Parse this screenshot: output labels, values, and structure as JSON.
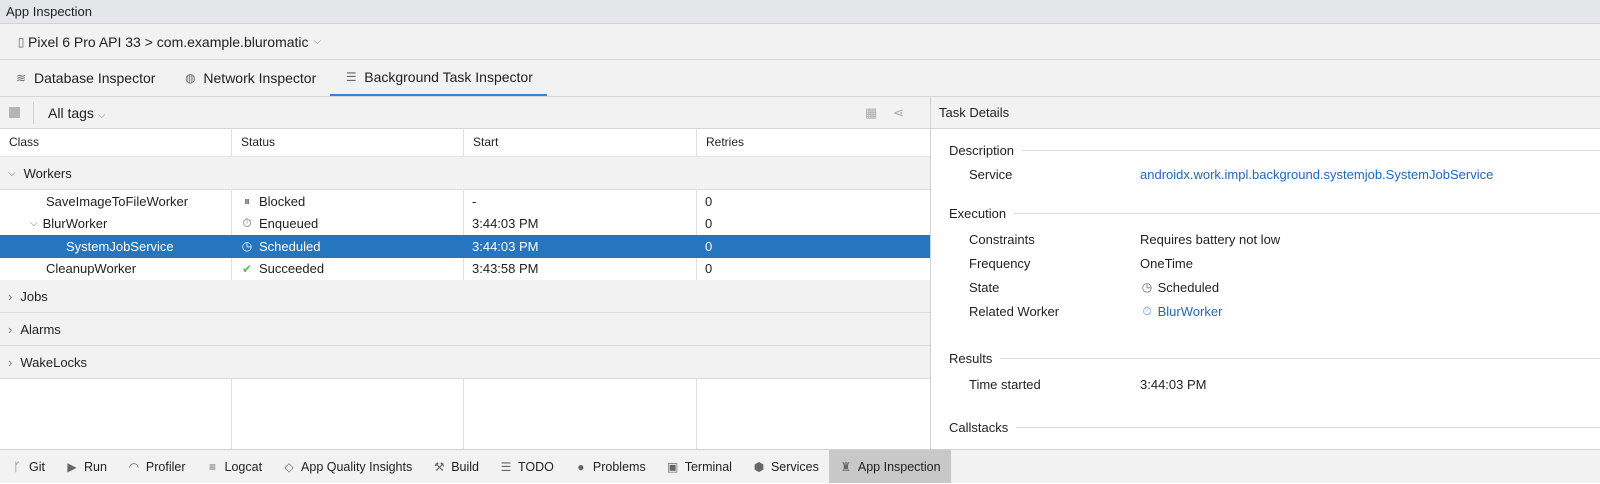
{
  "window_title": "App Inspection",
  "device_selector": {
    "label": "Pixel 6 Pro API 33 > com.example.bluromatic",
    "icon": "device-icon"
  },
  "tabs": [
    {
      "label": "Database Inspector",
      "icon": "database-icon"
    },
    {
      "label": "Network Inspector",
      "icon": "globe-icon"
    },
    {
      "label": "Background Task Inspector",
      "icon": "list-icon",
      "active": true
    }
  ],
  "toolbar": {
    "tags_dropdown": "All tags"
  },
  "table": {
    "columns": [
      "Class",
      "Status",
      "Start",
      "Retries"
    ],
    "groups": {
      "workers": "Workers",
      "jobs": "Jobs",
      "alarms": "Alarms",
      "wakelocks": "WakeLocks"
    },
    "rows": [
      {
        "class": "SaveImageToFileWorker",
        "status": "Blocked",
        "status_icon": "pause-icon",
        "start": "-",
        "retries": "0"
      },
      {
        "class": "BlurWorker",
        "status": "Enqueued",
        "status_icon": "timer-icon",
        "start": "3:44:03 PM",
        "retries": "0"
      },
      {
        "class": "SystemJobService",
        "status": "Scheduled",
        "status_icon": "clock-icon",
        "start": "3:44:03 PM",
        "retries": "0",
        "selected": true
      },
      {
        "class": "CleanupWorker",
        "status": "Succeeded",
        "status_icon": "check-icon",
        "start": "3:43:58 PM",
        "retries": "0"
      }
    ]
  },
  "details": {
    "title": "Task Details",
    "description": {
      "heading": "Description",
      "service_label": "Service",
      "service_value": "androidx.work.impl.background.systemjob.SystemJobService"
    },
    "execution": {
      "heading": "Execution",
      "constraints_label": "Constraints",
      "constraints_value": "Requires battery not low",
      "frequency_label": "Frequency",
      "frequency_value": "OneTime",
      "state_label": "State",
      "state_value": "Scheduled",
      "related_label": "Related Worker",
      "related_value": "BlurWorker"
    },
    "results": {
      "heading": "Results",
      "time_label": "Time started",
      "time_value": "3:44:03 PM"
    },
    "callstacks": {
      "heading": "Callstacks"
    }
  },
  "bottom_bar": [
    {
      "label": "Git",
      "icon": "git-icon"
    },
    {
      "label": "Run",
      "icon": "run-icon"
    },
    {
      "label": "Profiler",
      "icon": "profiler-icon"
    },
    {
      "label": "Logcat",
      "icon": "logcat-icon"
    },
    {
      "label": "App Quality Insights",
      "icon": "diamond-icon"
    },
    {
      "label": "Build",
      "icon": "hammer-icon"
    },
    {
      "label": "TODO",
      "icon": "list-icon"
    },
    {
      "label": "Problems",
      "icon": "problems-icon"
    },
    {
      "label": "Terminal",
      "icon": "terminal-icon"
    },
    {
      "label": "Services",
      "icon": "services-icon"
    },
    {
      "label": "App Inspection",
      "icon": "app-inspection-icon",
      "active": true
    }
  ],
  "colors": {
    "selection": "#2675bf",
    "link": "#2168bd",
    "tab_underline": "#3d7fd6",
    "success": "#5fb85f"
  }
}
